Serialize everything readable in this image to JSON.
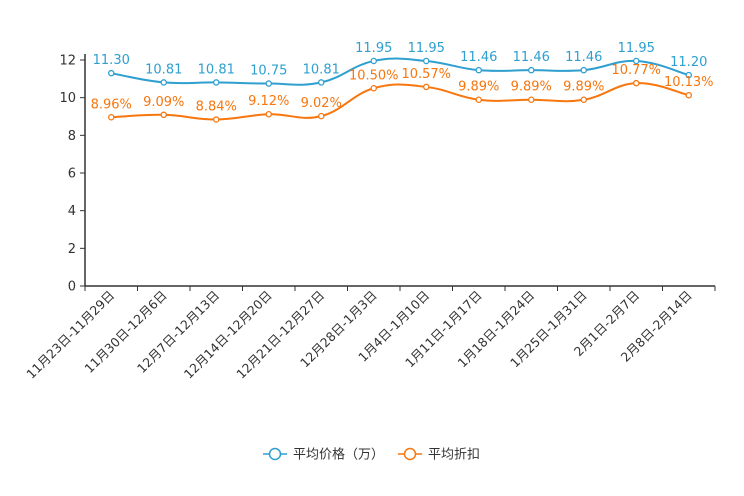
{
  "chart_data": {
    "type": "line",
    "categories": [
      "11月23日-11月29日",
      "11月30日-12月6日",
      "12月7日-12月13日",
      "12月14日-12月20日",
      "12月21日-12月27日",
      "12月28日-1月3日",
      "1月4日-1月10日",
      "1月11日-1月17日",
      "1月18日-1月24日",
      "1月25日-1月31日",
      "2月1日-2月7日",
      "2月8日-2月14日"
    ],
    "series": [
      {
        "name": "平均价格（万）",
        "color": "#2e9fcf",
        "values": [
          11.3,
          10.81,
          10.81,
          10.75,
          10.81,
          11.95,
          11.95,
          11.46,
          11.46,
          11.46,
          11.95,
          11.2
        ],
        "labels": [
          "11.30",
          "10.81",
          "10.81",
          "10.75",
          "10.81",
          "11.95",
          "11.95",
          "11.46",
          "11.46",
          "11.46",
          "11.95",
          "11.20"
        ]
      },
      {
        "name": "平均折扣",
        "color": "#f7760e",
        "values": [
          8.96,
          9.09,
          8.84,
          9.12,
          9.02,
          10.5,
          10.57,
          9.89,
          9.89,
          9.89,
          10.77,
          10.13
        ],
        "labels": [
          "8.96%",
          "9.09%",
          "8.84%",
          "9.12%",
          "9.02%",
          "10.50%",
          "10.57%",
          "9.89%",
          "9.89%",
          "9.89%",
          "10.77%",
          "10.13%"
        ]
      }
    ],
    "ylim": [
      0,
      12
    ],
    "yticks": [
      0,
      2,
      4,
      6,
      8,
      10,
      12
    ],
    "legend_position": "bottom-center",
    "smooth": true,
    "title": "",
    "xlabel": "",
    "ylabel": ""
  }
}
